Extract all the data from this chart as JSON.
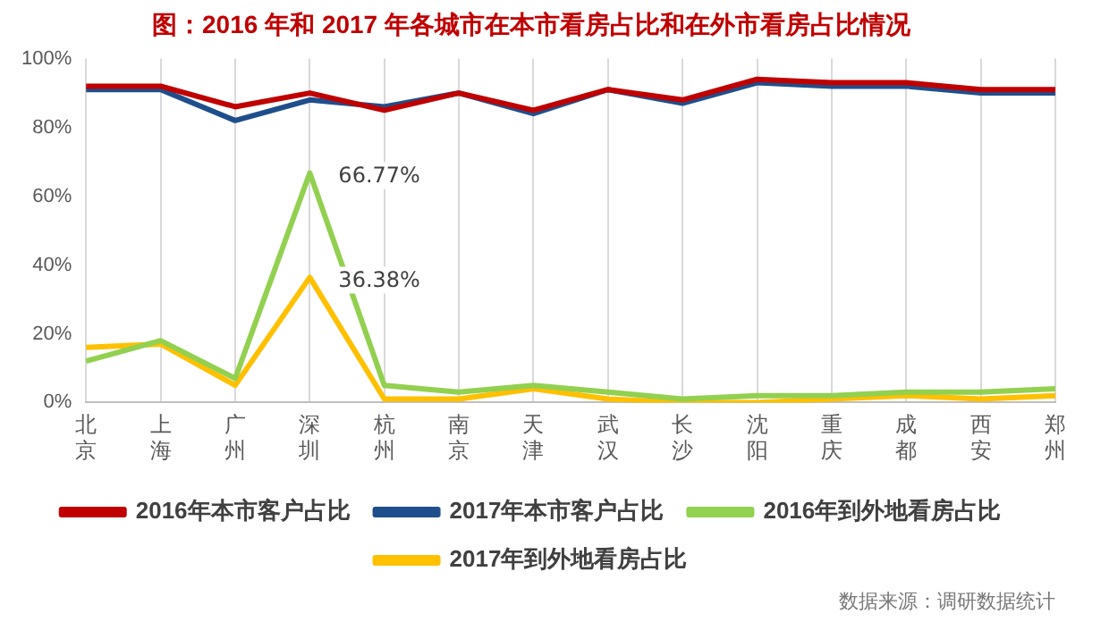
{
  "chart_data": {
    "type": "line",
    "title": "图：2016 年和 2017 年各城市在本市看房占比和在外市看房占比情况",
    "categories": [
      "北京",
      "上海",
      "广州",
      "深圳",
      "杭州",
      "南京",
      "天津",
      "武汉",
      "长沙",
      "沈阳",
      "重庆",
      "成都",
      "西安",
      "郑州"
    ],
    "series": [
      {
        "name": "2016年本市客户占比",
        "color": "#c00000",
        "values": [
          92,
          92,
          86,
          90,
          85,
          90,
          85,
          91,
          88,
          94,
          93,
          93,
          91,
          91
        ]
      },
      {
        "name": "2017年本市客户占比",
        "color": "#1f4e8c",
        "values": [
          91,
          91,
          82,
          88,
          86,
          90,
          84,
          91,
          87,
          93,
          92,
          92,
          90,
          90
        ]
      },
      {
        "name": "2016年到外地看房占比",
        "color": "#92d050",
        "values": [
          12,
          18,
          7,
          66.77,
          5,
          3,
          5,
          3,
          1,
          2,
          2,
          3,
          3,
          4
        ],
        "value_labels": [
          null,
          null,
          null,
          "66.77%",
          null,
          null,
          null,
          null,
          null,
          null,
          null,
          null,
          null,
          null
        ]
      },
      {
        "name": "2017年到外地看房占比",
        "color": "#ffc000",
        "values": [
          16,
          17,
          5,
          36.38,
          1,
          1,
          4,
          1,
          0,
          0,
          1,
          2,
          1,
          2
        ],
        "value_labels": [
          null,
          null,
          null,
          "36.38%",
          null,
          null,
          null,
          null,
          null,
          null,
          null,
          null,
          null,
          null
        ]
      }
    ],
    "ylim": [
      0,
      100
    ],
    "yticks": [
      {
        "value": 0,
        "label": "0%"
      },
      {
        "value": 20,
        "label": "20%"
      },
      {
        "value": 40,
        "label": "40%"
      },
      {
        "value": 60,
        "label": "60%"
      },
      {
        "value": 80,
        "label": "80%"
      },
      {
        "value": 100,
        "label": "100%"
      }
    ],
    "grid": "x",
    "legend": "bottom",
    "marker": "none",
    "line_style": "solid",
    "annotations": [
      "数据来源：调研数据统计"
    ]
  }
}
